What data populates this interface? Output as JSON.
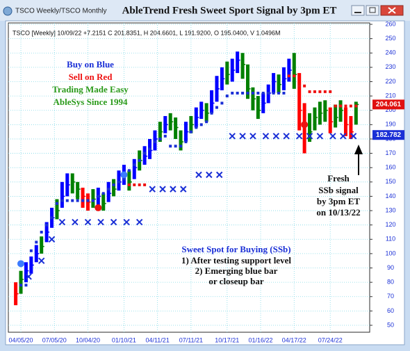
{
  "window": {
    "tab": "TSCO Weekly/TSCO Monthly"
  },
  "chart_data": {
    "type": "hlc",
    "title": "AbleTrend Fresh Sweet Sport Signal by 3pm ET",
    "subtitle": "TSCO [Weekly] 10/09/22 +7.2151 C 201.8351, H 204.6601, L 191.9200, O 195.0400, V 1.0496M",
    "xlim": [
      0,
      136
    ],
    "xticks": [
      {
        "value": 2,
        "label": "04/05/20"
      },
      {
        "value": 15,
        "label": "07/05/20"
      },
      {
        "value": 28,
        "label": "10/04/20"
      },
      {
        "value": 42,
        "label": "01/10/21"
      },
      {
        "value": 55,
        "label": "04/11/21"
      },
      {
        "value": 68,
        "label": "07/11/21"
      },
      {
        "value": 82,
        "label": "10/17/21"
      },
      {
        "value": 95,
        "label": "01/16/22"
      },
      {
        "value": 108,
        "label": "04/17/22"
      },
      {
        "value": 122,
        "label": "07/24/22"
      }
    ],
    "ylim": [
      50,
      260
    ],
    "yticks": [
      50,
      60,
      70,
      80,
      90,
      100,
      110,
      120,
      130,
      140,
      150,
      160,
      170,
      180,
      190,
      200,
      210,
      220,
      230,
      240,
      250,
      260
    ],
    "grid": true,
    "x": [
      0,
      2,
      4,
      6,
      8,
      10,
      12,
      14,
      16,
      18,
      20,
      22,
      24,
      26,
      28,
      30,
      32,
      34,
      36,
      38,
      40,
      42,
      44,
      46,
      48,
      50,
      52,
      54,
      56,
      58,
      60,
      62,
      64,
      66,
      68,
      70,
      72,
      74,
      76,
      78,
      80,
      82,
      84,
      86,
      88,
      90,
      92,
      94,
      96,
      98,
      100,
      102,
      104,
      106,
      108,
      110,
      112,
      114,
      116,
      118,
      120,
      122,
      124,
      126,
      128,
      130,
      132
    ],
    "high": [
      80,
      88,
      94,
      98,
      106,
      112,
      122,
      132,
      138,
      150,
      156,
      156,
      150,
      146,
      142,
      145,
      146,
      142,
      150,
      152,
      158,
      162,
      158,
      166,
      172,
      175,
      180,
      186,
      192,
      196,
      198,
      195,
      186,
      192,
      196,
      202,
      206,
      205,
      214,
      224,
      230,
      234,
      236,
      241,
      240,
      232,
      216,
      210,
      212,
      218,
      226,
      225,
      230,
      236,
      240,
      226,
      205,
      198,
      202,
      206,
      207,
      202,
      204,
      207,
      202,
      196,
      206
    ],
    "low": [
      64,
      72,
      80,
      86,
      94,
      100,
      108,
      118,
      124,
      132,
      140,
      142,
      138,
      132,
      130,
      132,
      134,
      130,
      136,
      140,
      144,
      148,
      144,
      152,
      158,
      162,
      166,
      172,
      178,
      184,
      186,
      180,
      172,
      178,
      184,
      188,
      194,
      192,
      198,
      206,
      214,
      218,
      220,
      226,
      222,
      208,
      200,
      194,
      198,
      205,
      212,
      212,
      214,
      220,
      215,
      186,
      170,
      178,
      186,
      190,
      192,
      184,
      188,
      192,
      182,
      180,
      190
    ],
    "close": [
      72,
      82,
      88,
      92,
      100,
      105,
      115,
      125,
      130,
      140,
      148,
      150,
      145,
      140,
      136,
      138,
      140,
      135,
      142,
      145,
      150,
      155,
      150,
      160,
      165,
      168,
      172,
      180,
      185,
      190,
      192,
      188,
      178,
      185,
      190,
      195,
      200,
      198,
      205,
      215,
      222,
      225,
      228,
      235,
      232,
      215,
      208,
      200,
      205,
      212,
      220,
      218,
      222,
      228,
      225,
      200,
      190,
      185,
      195,
      198,
      200,
      192,
      195,
      200,
      190,
      185,
      204.06
    ],
    "colors": [
      "red",
      "green",
      "blue",
      "blue",
      "blue",
      "green",
      "blue",
      "blue",
      "green",
      "blue",
      "blue",
      "green",
      "green",
      "red",
      "red",
      "green",
      "blue",
      "green",
      "blue",
      "green",
      "blue",
      "blue",
      "green",
      "blue",
      "green",
      "blue",
      "blue",
      "blue",
      "green",
      "blue",
      "green",
      "green",
      "green",
      "blue",
      "green",
      "blue",
      "blue",
      "green",
      "blue",
      "blue",
      "blue",
      "green",
      "blue",
      "blue",
      "green",
      "green",
      "green",
      "green",
      "blue",
      "blue",
      "blue",
      "green",
      "blue",
      "blue",
      "green",
      "red",
      "red",
      "green",
      "green",
      "green",
      "green",
      "red",
      "green",
      "green",
      "red",
      "red",
      "green"
    ],
    "support_dots": {
      "color": "#1a2fd6",
      "x": [
        2,
        4,
        6,
        8,
        10,
        12,
        14,
        16,
        18,
        20,
        22,
        24,
        26,
        28,
        30,
        32,
        34,
        36,
        38,
        40,
        42,
        44,
        46,
        48,
        50,
        52,
        54,
        56,
        58,
        60,
        62,
        64,
        66,
        68,
        70,
        72,
        74,
        76,
        78,
        80,
        82,
        84,
        86,
        88,
        90,
        92,
        94,
        96,
        98,
        100,
        102,
        104
      ],
      "values": [
        78,
        78,
        102,
        108,
        115,
        120,
        125,
        135,
        137,
        137,
        137,
        137,
        137,
        137,
        137,
        140,
        142,
        145,
        148,
        150,
        152,
        158,
        162,
        165,
        170,
        173,
        178,
        180,
        182,
        175,
        175,
        175,
        178,
        185,
        188,
        190,
        192,
        198,
        202,
        205,
        210,
        212,
        212,
        212,
        212,
        212,
        212,
        212,
        212,
        212,
        212,
        212
      ]
    },
    "resistance_dots": {
      "color": "#ee1111",
      "x": [
        44,
        46,
        48,
        50,
        106,
        108,
        110,
        112,
        114,
        116,
        118,
        120,
        122,
        124,
        126,
        128,
        130,
        132
      ],
      "values": [
        148,
        148,
        148,
        148,
        224,
        224,
        217,
        217,
        213,
        213,
        213,
        213,
        213,
        203,
        203,
        203,
        203,
        203
      ]
    },
    "x_marks": {
      "color": "#1a2fd6",
      "x": [
        5,
        10,
        14,
        18,
        23,
        28,
        33,
        38,
        43,
        48,
        53,
        57,
        61,
        65,
        71,
        75,
        79,
        84,
        88,
        92,
        97,
        101,
        105,
        110,
        114,
        118,
        123,
        127,
        131
      ],
      "values": [
        84,
        95,
        110,
        122,
        122,
        122,
        122,
        122,
        122,
        122,
        145,
        145,
        145,
        145,
        155,
        155,
        155,
        182,
        182,
        182,
        182,
        182,
        182,
        182,
        182,
        182,
        182,
        182,
        182
      ]
    },
    "signal_circles": {
      "x": [
        2,
        32,
        42,
        112
      ],
      "values": [
        93,
        132,
        155,
        190
      ],
      "colors": [
        "#3b7bff",
        "#ee1111",
        "#3b7bff",
        "#ee1111"
      ]
    },
    "price_tags": [
      {
        "value": 204.061,
        "color": "#e01010"
      },
      {
        "value": 182.782,
        "color": "#1a2fd6"
      }
    ],
    "annotations": {
      "left": [
        "Buy on Blue",
        "Sell on Red",
        "Trading Made Easy",
        "AbleSys Since 1994"
      ],
      "left_colors": [
        "#1a2fd6",
        "#ee1111",
        "#2a9a1a",
        "#2a9a1a"
      ],
      "right": [
        "Fresh",
        "SSb signal",
        "by 3pm ET",
        "on 10/13/22"
      ],
      "bottom": [
        "Sweet Spot for Buying (SSb)",
        "1) After testing support level",
        "2) Emerging blue bar",
        "or closeup bar"
      ]
    }
  }
}
